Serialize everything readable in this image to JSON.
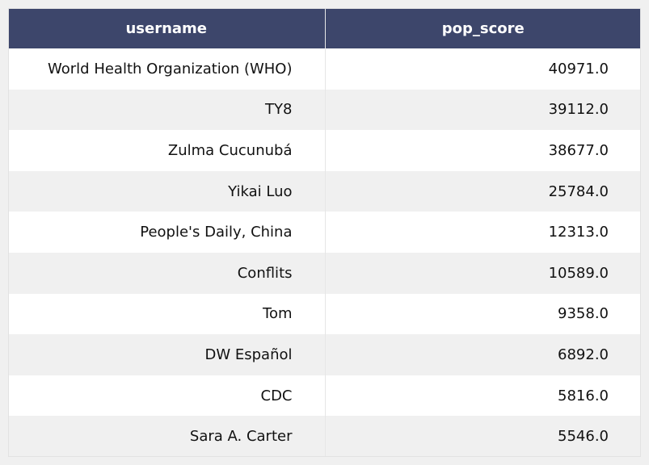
{
  "chart_data": {
    "type": "table",
    "columns": [
      "username",
      "pop_score"
    ],
    "rows": [
      [
        "World Health Organization (WHO)",
        "40971.0"
      ],
      [
        "TY8",
        "39112.0"
      ],
      [
        "Zulma Cucunubá",
        "38677.0"
      ],
      [
        "Yikai Luo",
        "25784.0"
      ],
      [
        "People's Daily, China",
        "12313.0"
      ],
      [
        "Conflits",
        "10589.0"
      ],
      [
        "Tom",
        "9358.0"
      ],
      [
        "DW Español",
        "6892.0"
      ],
      [
        "CDC",
        "5816.0"
      ],
      [
        "Sara A. Carter",
        "5546.0"
      ]
    ],
    "colors": {
      "header_bg": "#3d466b",
      "header_text": "#ffffff",
      "row_odd": "#ffffff",
      "row_even": "#f0f0f0"
    }
  }
}
